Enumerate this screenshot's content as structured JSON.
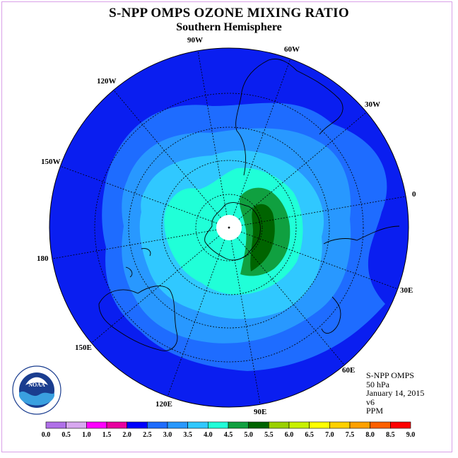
{
  "title": "S-NPP OMPS OZONE MIXING RATIO",
  "subtitle": "Southern Hemisphere",
  "info": {
    "instrument": "S-NPP OMPS",
    "level": "50 hPa",
    "date": "January 14, 2015",
    "version": "v6",
    "units": "PPM"
  },
  "longitude_labels": [
    "90W",
    "60W",
    "30W",
    "0",
    "30E",
    "60E",
    "90E",
    "120E",
    "150E",
    "180",
    "150W",
    "120W"
  ],
  "colorbar": {
    "ticks": [
      "0.0",
      "0.5",
      "1.0",
      "1.5",
      "2.0",
      "2.5",
      "3.0",
      "3.5",
      "4.0",
      "4.5",
      "5.0",
      "5.5",
      "6.0",
      "6.5",
      "7.0",
      "7.5",
      "8.0",
      "8.5",
      "9.0"
    ],
    "colors": [
      "#b070e8",
      "#d8a8f0",
      "#ff00ff",
      "#e800a0",
      "#0000ff",
      "#1e6cff",
      "#2898ff",
      "#30c8ff",
      "#20ffd8",
      "#10a040",
      "#006400",
      "#9ad000",
      "#c8f000",
      "#ffff00",
      "#ffd000",
      "#ffa000",
      "#ff6000",
      "#ff0000",
      "#8b5a3c"
    ]
  },
  "legend_colors": {
    "band_2_0": "#0a1ef0",
    "band_2_5": "#1e6cff",
    "band_3_0": "#2898ff",
    "band_3_5": "#30c8ff",
    "band_4_0": "#20ffd8",
    "band_4_5": "#10a040",
    "band_5_0": "#006400"
  }
}
